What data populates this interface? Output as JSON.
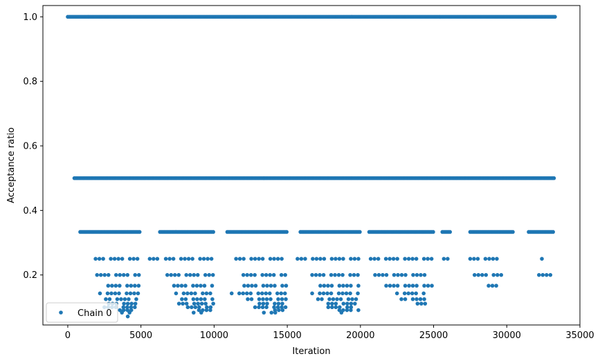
{
  "chart_data": {
    "type": "scatter",
    "xlabel": "Iteration",
    "ylabel": "Acceptance ratio",
    "xlim": [
      -1700,
      35000
    ],
    "ylim": [
      0.045,
      1.035
    ],
    "xticks": [
      0,
      5000,
      10000,
      15000,
      20000,
      25000,
      30000,
      35000
    ],
    "xtick_labels": [
      "0",
      "5000",
      "10000",
      "15000",
      "20000",
      "25000",
      "30000",
      "35000"
    ],
    "yticks": [
      0.2,
      0.4,
      0.6,
      0.8,
      1.0
    ],
    "ytick_labels": [
      "0.2",
      "0.4",
      "0.6",
      "0.8",
      "1.0"
    ],
    "grid": false,
    "legend_position": "lower-left",
    "series_color": "#1f77b4",
    "series": [
      {
        "name": "Chain 0",
        "marker": "dot",
        "bands": [
          {
            "y": 1.0,
            "x_ranges": [
              [
                0,
                33300
              ]
            ]
          },
          {
            "y": 0.5,
            "x_ranges": [
              [
                450,
                33300
              ]
            ]
          },
          {
            "y": 0.3333,
            "x_ranges": [
              [
                850,
                5000
              ],
              [
                6300,
                10000
              ],
              [
                10900,
                15000
              ],
              [
                15900,
                20000
              ],
              [
                20600,
                25000
              ],
              [
                25600,
                26200
              ],
              [
                27500,
                30500
              ],
              [
                31500,
                33200
              ]
            ]
          },
          {
            "y": 0.25,
            "x_ranges": [
              [
                1900,
                5000
              ],
              [
                5600,
                6200
              ],
              [
                6700,
                10000
              ],
              [
                11500,
                15000
              ],
              [
                15700,
                20000
              ],
              [
                20700,
                25000
              ],
              [
                25700,
                26000
              ],
              [
                27500,
                29500
              ],
              [
                32400,
                32600
              ]
            ]
          },
          {
            "y": 0.2,
            "x_ranges": [
              [
                2000,
                5000
              ],
              [
                6800,
                10000
              ],
              [
                12000,
                15000
              ],
              [
                16700,
                20000
              ],
              [
                21000,
                24500
              ],
              [
                27800,
                29800
              ],
              [
                32200,
                33000
              ]
            ]
          },
          {
            "y": 0.1667,
            "x_ranges": [
              [
                2500,
                5000
              ],
              [
                7000,
                10000
              ],
              [
                11800,
                15000
              ],
              [
                17000,
                20000
              ],
              [
                21500,
                25000
              ],
              [
                28500,
                29500
              ]
            ]
          },
          {
            "y": 0.1429,
            "x_ranges": [
              [
                2200,
                5000
              ],
              [
                7400,
                10000
              ],
              [
                11200,
                15000
              ],
              [
                16700,
                20000
              ],
              [
                22500,
                24500
              ]
            ]
          },
          {
            "y": 0.125,
            "x_ranges": [
              [
                2600,
                4800
              ],
              [
                7800,
                10000
              ],
              [
                12300,
                15000
              ],
              [
                17100,
                19900
              ],
              [
                22800,
                24800
              ]
            ]
          },
          {
            "y": 0.1111,
            "x_ranges": [
              [
                2800,
                5000
              ],
              [
                7600,
                10000
              ],
              [
                13100,
                14900
              ],
              [
                17800,
                19900
              ],
              [
                23900,
                24900
              ]
            ]
          },
          {
            "y": 0.1,
            "x_ranges": [
              [
                2500,
                5000
              ],
              [
                8200,
                9900
              ],
              [
                12800,
                15000
              ],
              [
                17800,
                19600
              ]
            ]
          },
          {
            "y": 0.0909,
            "x_ranges": [
              [
                3300,
                4600
              ],
              [
                8700,
                9800
              ],
              [
                13900,
                14900
              ],
              [
                18300,
                19900
              ]
            ]
          },
          {
            "y": 0.0833,
            "x_ranges": [
              [
                3700,
                4400
              ],
              [
                8600,
                9300
              ],
              [
                13400,
                14200
              ],
              [
                18700,
                19000
              ]
            ]
          },
          {
            "y": 0.0714,
            "x_ranges": [
              [
                4100,
                4300
              ]
            ]
          }
        ]
      }
    ]
  }
}
